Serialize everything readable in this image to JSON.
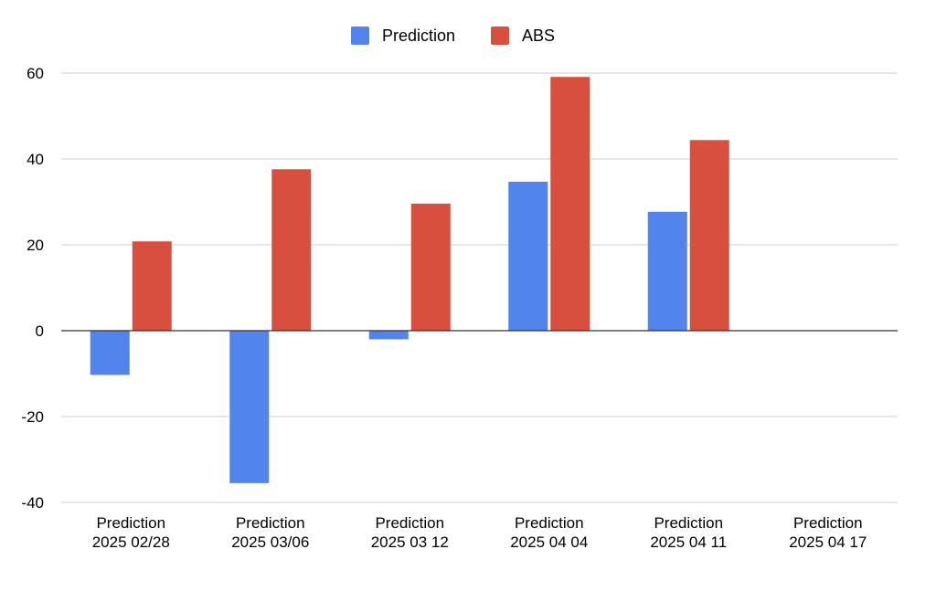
{
  "colors": {
    "Prediction": "#5184ec",
    "ABS": "#d94f3d",
    "grid": "#cccccc",
    "zero_axis": "#333333",
    "text": "#000000"
  },
  "chart_data": {
    "type": "bar",
    "title": "",
    "xlabel": "",
    "ylabel": "",
    "ylim": [
      -40,
      60
    ],
    "yticks": [
      -40,
      -20,
      0,
      20,
      40,
      60
    ],
    "grid": true,
    "legend_position": "top-center",
    "categories": [
      [
        "Prediction",
        "2025 02/28"
      ],
      [
        "Prediction",
        "2025 03/06"
      ],
      [
        "Prediction",
        "2025 03 12"
      ],
      [
        "Prediction",
        "2025 04 04"
      ],
      [
        "Prediction",
        "2025 04 11"
      ],
      [
        "Prediction",
        "2025 04 17"
      ]
    ],
    "series": [
      {
        "name": "Prediction",
        "values": [
          -10.3,
          -35.5,
          -2.0,
          34.7,
          27.7,
          null
        ]
      },
      {
        "name": "ABS",
        "values": [
          20.8,
          37.6,
          29.6,
          59.1,
          44.4,
          null
        ]
      }
    ]
  }
}
